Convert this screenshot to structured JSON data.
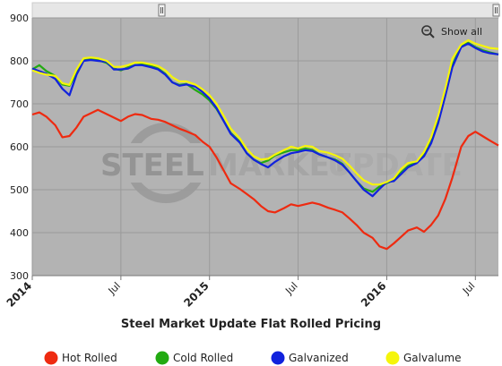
{
  "zoom": {
    "show_all_label": "Show all",
    "icon": "zoom-out-magnifier-icon"
  },
  "watermark": {
    "part1": "STEEL",
    "part2": "MARKET",
    "part3": "UPDATE"
  },
  "chart_data": {
    "type": "line",
    "title": "Steel Market Update Flat Rolled Pricing",
    "xlabel": "",
    "ylabel": "",
    "ylim": [
      300,
      900
    ],
    "yticks": [
      300,
      400,
      500,
      600,
      700,
      800,
      900
    ],
    "xticks": [
      {
        "label": "2014",
        "x": 2014.0,
        "major": true
      },
      {
        "label": "Jul",
        "x": 2014.5,
        "major": false
      },
      {
        "label": "2015",
        "x": 2015.0,
        "major": true
      },
      {
        "label": "Jul",
        "x": 2015.5,
        "major": false
      },
      {
        "label": "2016",
        "x": 2016.0,
        "major": true
      },
      {
        "label": "Jul",
        "x": 2016.5,
        "major": false
      }
    ],
    "xlim": [
      2014.0,
      2016.63
    ],
    "grid": true,
    "legend_position": "bottom",
    "plot_background": "#b3b3b3",
    "series": [
      {
        "name": "Hot Rolled",
        "color": "#ee2a10",
        "points": [
          [
            2014.0,
            675
          ],
          [
            2014.04,
            680
          ],
          [
            2014.08,
            670
          ],
          [
            2014.13,
            650
          ],
          [
            2014.17,
            622
          ],
          [
            2014.21,
            625
          ],
          [
            2014.25,
            645
          ],
          [
            2014.29,
            670
          ],
          [
            2014.33,
            678
          ],
          [
            2014.37,
            686
          ],
          [
            2014.42,
            676
          ],
          [
            2014.46,
            668
          ],
          [
            2014.5,
            660
          ],
          [
            2014.54,
            670
          ],
          [
            2014.58,
            676
          ],
          [
            2014.62,
            674
          ],
          [
            2014.67,
            665
          ],
          [
            2014.71,
            663
          ],
          [
            2014.75,
            658
          ],
          [
            2014.79,
            650
          ],
          [
            2014.83,
            642
          ],
          [
            2014.87,
            636
          ],
          [
            2014.92,
            627
          ],
          [
            2014.96,
            612
          ],
          [
            2015.0,
            600
          ],
          [
            2015.04,
            575
          ],
          [
            2015.08,
            545
          ],
          [
            2015.12,
            515
          ],
          [
            2015.17,
            502
          ],
          [
            2015.21,
            490
          ],
          [
            2015.25,
            478
          ],
          [
            2015.29,
            462
          ],
          [
            2015.33,
            450
          ],
          [
            2015.37,
            447
          ],
          [
            2015.42,
            457
          ],
          [
            2015.46,
            466
          ],
          [
            2015.5,
            462
          ],
          [
            2015.54,
            466
          ],
          [
            2015.58,
            470
          ],
          [
            2015.62,
            466
          ],
          [
            2015.67,
            458
          ],
          [
            2015.71,
            453
          ],
          [
            2015.75,
            447
          ],
          [
            2015.79,
            433
          ],
          [
            2015.83,
            418
          ],
          [
            2015.87,
            400
          ],
          [
            2015.92,
            388
          ],
          [
            2015.96,
            368
          ],
          [
            2016.0,
            362
          ],
          [
            2016.04,
            375
          ],
          [
            2016.08,
            390
          ],
          [
            2016.12,
            405
          ],
          [
            2016.17,
            412
          ],
          [
            2016.21,
            402
          ],
          [
            2016.25,
            418
          ],
          [
            2016.29,
            440
          ],
          [
            2016.33,
            478
          ],
          [
            2016.37,
            528
          ],
          [
            2016.42,
            600
          ],
          [
            2016.46,
            625
          ],
          [
            2016.5,
            635
          ],
          [
            2016.54,
            625
          ],
          [
            2016.58,
            615
          ],
          [
            2016.63,
            603
          ]
        ]
      },
      {
        "name": "Cold Rolled",
        "color": "#22aa11",
        "points": [
          [
            2014.0,
            780
          ],
          [
            2014.04,
            790
          ],
          [
            2014.08,
            776
          ],
          [
            2014.13,
            765
          ],
          [
            2014.17,
            745
          ],
          [
            2014.21,
            742
          ],
          [
            2014.25,
            772
          ],
          [
            2014.29,
            805
          ],
          [
            2014.33,
            805
          ],
          [
            2014.37,
            802
          ],
          [
            2014.42,
            795
          ],
          [
            2014.46,
            782
          ],
          [
            2014.5,
            778
          ],
          [
            2014.54,
            785
          ],
          [
            2014.58,
            790
          ],
          [
            2014.62,
            792
          ],
          [
            2014.67,
            788
          ],
          [
            2014.71,
            782
          ],
          [
            2014.75,
            770
          ],
          [
            2014.79,
            750
          ],
          [
            2014.83,
            744
          ],
          [
            2014.87,
            746
          ],
          [
            2014.92,
            732
          ],
          [
            2014.96,
            722
          ],
          [
            2015.0,
            708
          ],
          [
            2015.04,
            688
          ],
          [
            2015.08,
            660
          ],
          [
            2015.12,
            632
          ],
          [
            2015.17,
            612
          ],
          [
            2015.21,
            585
          ],
          [
            2015.25,
            570
          ],
          [
            2015.29,
            562
          ],
          [
            2015.33,
            568
          ],
          [
            2015.37,
            580
          ],
          [
            2015.42,
            587
          ],
          [
            2015.46,
            592
          ],
          [
            2015.5,
            592
          ],
          [
            2015.54,
            596
          ],
          [
            2015.58,
            593
          ],
          [
            2015.62,
            582
          ],
          [
            2015.67,
            575
          ],
          [
            2015.71,
            570
          ],
          [
            2015.75,
            560
          ],
          [
            2015.79,
            540
          ],
          [
            2015.83,
            520
          ],
          [
            2015.87,
            503
          ],
          [
            2015.92,
            495
          ],
          [
            2015.96,
            508
          ],
          [
            2016.0,
            515
          ],
          [
            2016.04,
            522
          ],
          [
            2016.08,
            540
          ],
          [
            2016.12,
            555
          ],
          [
            2016.17,
            565
          ],
          [
            2016.21,
            580
          ],
          [
            2016.25,
            612
          ],
          [
            2016.29,
            660
          ],
          [
            2016.33,
            720
          ],
          [
            2016.37,
            790
          ],
          [
            2016.42,
            835
          ],
          [
            2016.46,
            842
          ],
          [
            2016.5,
            832
          ],
          [
            2016.54,
            825
          ],
          [
            2016.58,
            820
          ],
          [
            2016.63,
            815
          ]
        ]
      },
      {
        "name": "Galvanized",
        "color": "#1122dd",
        "points": [
          [
            2014.0,
            782
          ],
          [
            2014.04,
            776
          ],
          [
            2014.08,
            770
          ],
          [
            2014.13,
            758
          ],
          [
            2014.17,
            735
          ],
          [
            2014.21,
            720
          ],
          [
            2014.25,
            768
          ],
          [
            2014.29,
            800
          ],
          [
            2014.33,
            802
          ],
          [
            2014.37,
            800
          ],
          [
            2014.42,
            798
          ],
          [
            2014.46,
            780
          ],
          [
            2014.5,
            780
          ],
          [
            2014.54,
            782
          ],
          [
            2014.58,
            790
          ],
          [
            2014.62,
            790
          ],
          [
            2014.67,
            785
          ],
          [
            2014.71,
            780
          ],
          [
            2014.75,
            768
          ],
          [
            2014.79,
            750
          ],
          [
            2014.83,
            742
          ],
          [
            2014.87,
            745
          ],
          [
            2014.92,
            740
          ],
          [
            2014.96,
            728
          ],
          [
            2015.0,
            712
          ],
          [
            2015.04,
            690
          ],
          [
            2015.08,
            660
          ],
          [
            2015.12,
            630
          ],
          [
            2015.17,
            610
          ],
          [
            2015.21,
            585
          ],
          [
            2015.25,
            570
          ],
          [
            2015.29,
            560
          ],
          [
            2015.33,
            552
          ],
          [
            2015.37,
            565
          ],
          [
            2015.42,
            578
          ],
          [
            2015.46,
            585
          ],
          [
            2015.5,
            588
          ],
          [
            2015.54,
            592
          ],
          [
            2015.58,
            590
          ],
          [
            2015.62,
            582
          ],
          [
            2015.67,
            575
          ],
          [
            2015.71,
            568
          ],
          [
            2015.75,
            558
          ],
          [
            2015.79,
            540
          ],
          [
            2015.83,
            520
          ],
          [
            2015.87,
            500
          ],
          [
            2015.92,
            485
          ],
          [
            2015.96,
            502
          ],
          [
            2016.0,
            518
          ],
          [
            2016.04,
            520
          ],
          [
            2016.08,
            536
          ],
          [
            2016.12,
            552
          ],
          [
            2016.17,
            562
          ],
          [
            2016.21,
            578
          ],
          [
            2016.25,
            608
          ],
          [
            2016.29,
            655
          ],
          [
            2016.33,
            718
          ],
          [
            2016.37,
            785
          ],
          [
            2016.42,
            832
          ],
          [
            2016.46,
            840
          ],
          [
            2016.5,
            830
          ],
          [
            2016.54,
            822
          ],
          [
            2016.58,
            818
          ],
          [
            2016.63,
            815
          ]
        ]
      },
      {
        "name": "Galvalume",
        "color": "#f5f50a",
        "points": [
          [
            2014.0,
            778
          ],
          [
            2014.04,
            772
          ],
          [
            2014.08,
            768
          ],
          [
            2014.13,
            765
          ],
          [
            2014.17,
            748
          ],
          [
            2014.21,
            744
          ],
          [
            2014.25,
            780
          ],
          [
            2014.29,
            806
          ],
          [
            2014.33,
            808
          ],
          [
            2014.37,
            806
          ],
          [
            2014.42,
            800
          ],
          [
            2014.46,
            786
          ],
          [
            2014.5,
            786
          ],
          [
            2014.54,
            790
          ],
          [
            2014.58,
            796
          ],
          [
            2014.62,
            796
          ],
          [
            2014.67,
            792
          ],
          [
            2014.71,
            788
          ],
          [
            2014.75,
            778
          ],
          [
            2014.79,
            762
          ],
          [
            2014.83,
            752
          ],
          [
            2014.87,
            752
          ],
          [
            2014.92,
            745
          ],
          [
            2014.96,
            734
          ],
          [
            2015.0,
            720
          ],
          [
            2015.04,
            700
          ],
          [
            2015.08,
            672
          ],
          [
            2015.12,
            642
          ],
          [
            2015.17,
            620
          ],
          [
            2015.21,
            595
          ],
          [
            2015.25,
            578
          ],
          [
            2015.29,
            570
          ],
          [
            2015.33,
            572
          ],
          [
            2015.37,
            582
          ],
          [
            2015.42,
            592
          ],
          [
            2015.46,
            600
          ],
          [
            2015.5,
            596
          ],
          [
            2015.54,
            602
          ],
          [
            2015.58,
            600
          ],
          [
            2015.62,
            590
          ],
          [
            2015.67,
            586
          ],
          [
            2015.71,
            580
          ],
          [
            2015.75,
            572
          ],
          [
            2015.79,
            556
          ],
          [
            2015.83,
            538
          ],
          [
            2015.87,
            522
          ],
          [
            2015.92,
            512
          ],
          [
            2015.96,
            512
          ],
          [
            2016.0,
            518
          ],
          [
            2016.04,
            526
          ],
          [
            2016.08,
            548
          ],
          [
            2016.12,
            562
          ],
          [
            2016.17,
            566
          ],
          [
            2016.21,
            588
          ],
          [
            2016.25,
            622
          ],
          [
            2016.29,
            672
          ],
          [
            2016.33,
            735
          ],
          [
            2016.37,
            805
          ],
          [
            2016.42,
            838
          ],
          [
            2016.46,
            848
          ],
          [
            2016.5,
            840
          ],
          [
            2016.54,
            835
          ],
          [
            2016.58,
            830
          ],
          [
            2016.63,
            828
          ]
        ]
      }
    ]
  }
}
